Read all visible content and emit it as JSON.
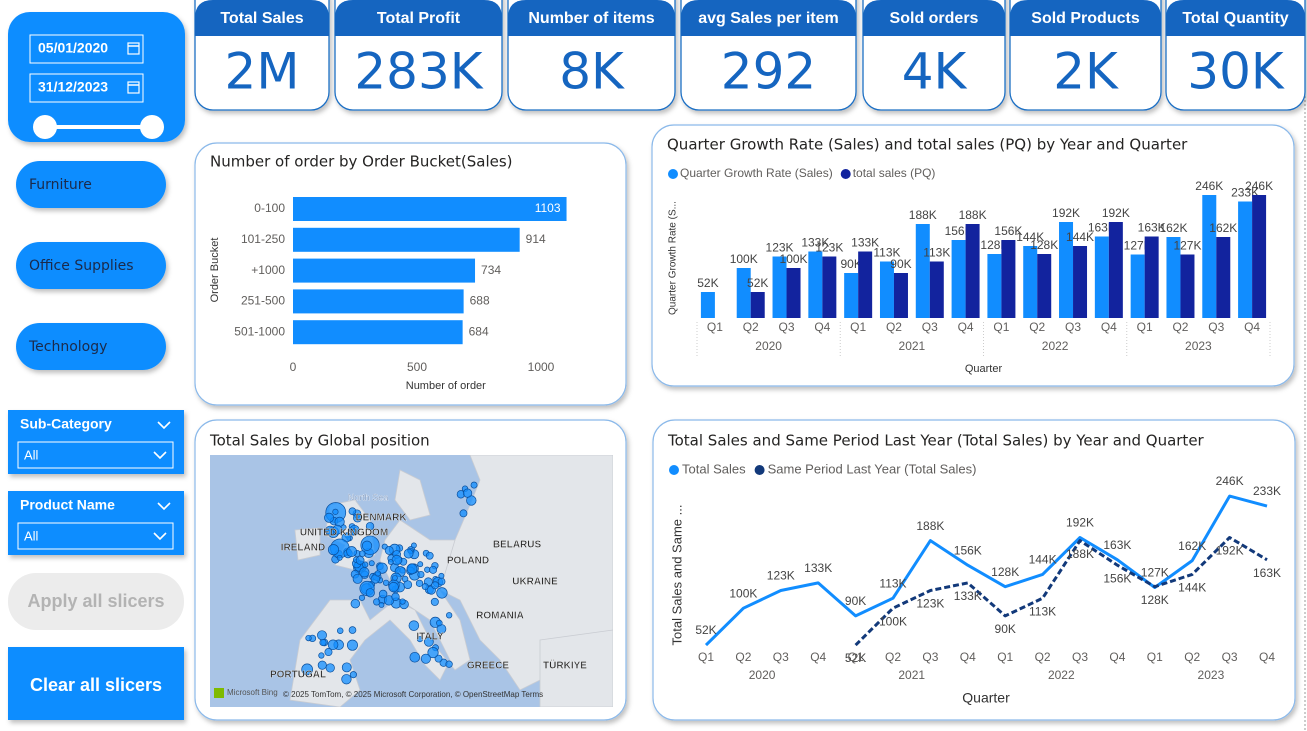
{
  "date_slicer": {
    "start": "05/01/2020",
    "end": "31/12/2023"
  },
  "category_buttons": [
    "Furniture",
    "Office Supplies",
    "Technology"
  ],
  "dropdowns": [
    {
      "label": "Sub-Category",
      "value": "All"
    },
    {
      "label": "Product Name",
      "value": "All"
    }
  ],
  "buttons": {
    "apply": "Apply all slicers",
    "clear": "Clear all slicers"
  },
  "kpis": [
    {
      "label": "Total Sales",
      "value": "2M"
    },
    {
      "label": "Total Profit",
      "value": "283K"
    },
    {
      "label": "Number of items",
      "value": "8K"
    },
    {
      "label": "avg Sales per item",
      "value": "292"
    },
    {
      "label": "Sold orders",
      "value": "4K"
    },
    {
      "label": "Sold Products",
      "value": "2K"
    },
    {
      "label": "Total Quantity",
      "value": "30K"
    }
  ],
  "map": {
    "title": "Total Sales by Global position",
    "labels": [
      "North Sea",
      "DENMARK",
      "UNITED KINGDOM",
      "IRELAND",
      "POLAND",
      "BELARUS",
      "UKRAINE",
      "ROMANIA",
      "ITALY",
      "GREECE",
      "TÜRKIYE",
      "PORTUGAL"
    ],
    "provider": "Microsoft Bing",
    "attribution": "© 2025 TomTom, © 2025 Microsoft Corporation, © OpenStreetMap  Terms"
  },
  "chart_data": [
    {
      "type": "hbar",
      "title": "Number of order by Order Bucket(Sales)",
      "x_label": "Number of order",
      "y_label": "Order Bucket",
      "categories": [
        "0-100",
        "101-250",
        "+1000",
        "251-500",
        "501-1000"
      ],
      "values": [
        1103,
        914,
        734,
        688,
        684
      ],
      "color": "#118DFF",
      "xlim": [
        0,
        1200
      ],
      "xticks": [
        0,
        500,
        1000
      ]
    },
    {
      "type": "grouped_bar",
      "title": "Quarter Growth Rate (Sales) and total sales (PQ) by Year and Quarter",
      "x_label": "Quarter",
      "y_label": "Quarter Growth Rate (S...",
      "categories": [
        "Q1",
        "Q2",
        "Q3",
        "Q4",
        "Q1",
        "Q2",
        "Q3",
        "Q4",
        "Q1",
        "Q2",
        "Q3",
        "Q4",
        "Q1",
        "Q2",
        "Q3",
        "Q4"
      ],
      "groups": [
        "2020",
        "2021",
        "2022",
        "2023"
      ],
      "ylim": [
        0,
        250000
      ],
      "series": [
        {
          "name": "Quarter Growth Rate (Sales)",
          "color": "#118DFF",
          "values": [
            52000,
            100000,
            123000,
            133000,
            90000,
            113000,
            188000,
            156000,
            128000,
            144000,
            192000,
            163000,
            127000,
            162000,
            246000,
            233000
          ],
          "value_labels": [
            "52K",
            "100K",
            "123K",
            "133K",
            "90K",
            "113K",
            "188K",
            "156K",
            "128K",
            "144K",
            "192K",
            "163K",
            "127K",
            "162K",
            "246K",
            "233K"
          ]
        },
        {
          "name": "total sales (PQ)",
          "color": "#12239E",
          "values": [
            null,
            52000,
            100000,
            123000,
            133000,
            90000,
            113000,
            188000,
            156000,
            128000,
            144000,
            192000,
            163000,
            127000,
            162000,
            246000
          ],
          "value_labels": [
            null,
            "52K",
            "100K",
            "123K",
            "133K",
            "90K",
            "113K",
            "188K",
            "156K",
            "128K",
            "144K",
            "192K",
            "163K",
            "127K",
            "162K",
            "246K"
          ]
        }
      ]
    },
    {
      "type": "line",
      "title": "Total Sales and Same Period Last Year (Total Sales) by Year and Quarter",
      "x_label": "Quarter",
      "y_label": "Total Sales and Same ...",
      "categories": [
        "Q1",
        "Q2",
        "Q3",
        "Q4",
        "Q1",
        "Q2",
        "Q3",
        "Q4",
        "Q1",
        "Q2",
        "Q3",
        "Q4",
        "Q1",
        "Q2",
        "Q3",
        "Q4"
      ],
      "groups": [
        "2020",
        "2021",
        "2022",
        "2023"
      ],
      "ylim": [
        0,
        250000
      ],
      "series": [
        {
          "name": "Total Sales",
          "color": "#118DFF",
          "dash": false,
          "values": [
            52000,
            100000,
            123000,
            133000,
            90000,
            113000,
            188000,
            156000,
            128000,
            144000,
            192000,
            163000,
            127000,
            162000,
            246000,
            233000
          ],
          "value_labels": [
            "52K",
            "100K",
            "123K",
            "133K",
            "90K",
            "113K",
            "188K",
            "156K",
            "128K",
            "144K",
            "192K",
            "163K",
            "127K",
            "162K",
            "246K",
            "233K"
          ]
        },
        {
          "name": "Same Period Last Year (Total Sales)",
          "color": "#12397A",
          "dash": true,
          "values": [
            null,
            null,
            null,
            null,
            52000,
            100000,
            123000,
            133000,
            90000,
            113000,
            188000,
            156000,
            128000,
            144000,
            192000,
            163000
          ],
          "value_labels": [
            null,
            null,
            null,
            null,
            "52K",
            "100K",
            "123K",
            "133K",
            "90K",
            "113K",
            "188K",
            "156K",
            "128K",
            "144K",
            "192K",
            "163K"
          ]
        }
      ]
    }
  ]
}
